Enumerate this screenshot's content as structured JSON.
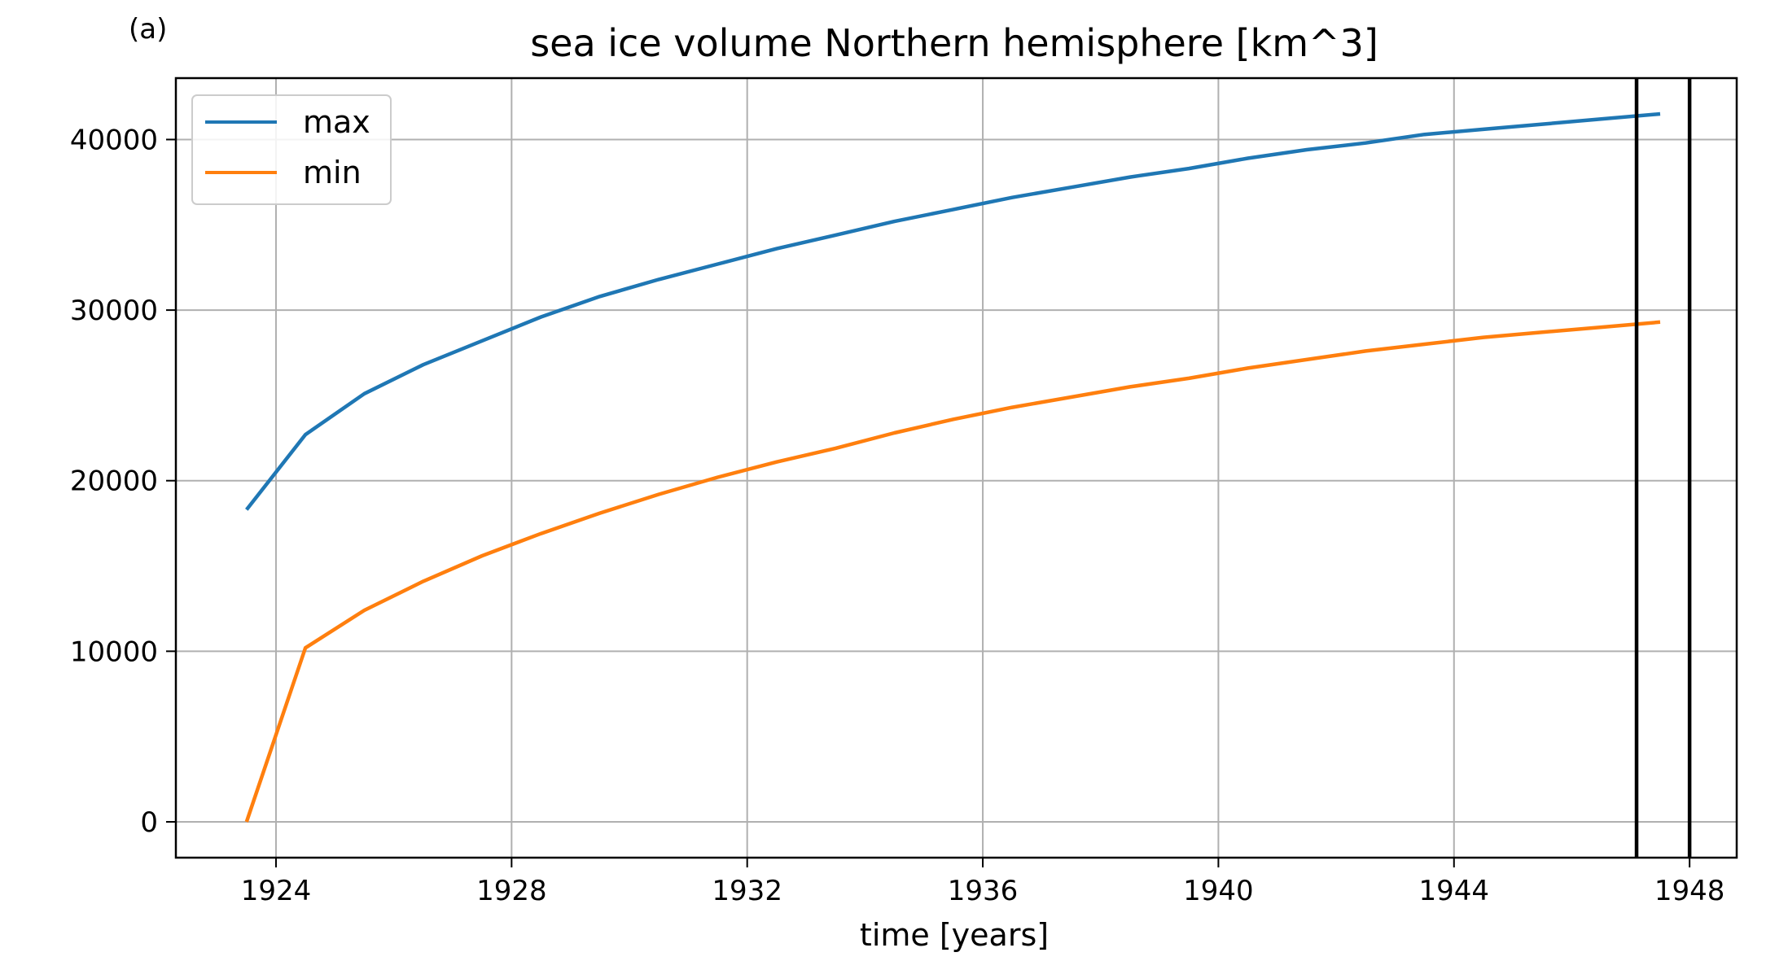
{
  "panel_label": "(a)",
  "chart_data": {
    "type": "line",
    "title": "sea ice volume Northern hemisphere [km^3]",
    "xlabel": "time [years]",
    "ylabel": "",
    "xlim": [
      1922.3,
      1948.8
    ],
    "ylim": [
      -2100,
      43600
    ],
    "xticks": [
      1924,
      1928,
      1932,
      1936,
      1940,
      1944,
      1948
    ],
    "yticks": [
      0,
      10000,
      20000,
      30000,
      40000
    ],
    "grid": true,
    "legend_position": "upper left",
    "vertical_lines": [
      1947.1,
      1948.0
    ],
    "series": [
      {
        "name": "max",
        "color": "#1f77b4",
        "x": [
          1923.5,
          1924.5,
          1925.5,
          1926.5,
          1927.5,
          1928.5,
          1929.5,
          1930.5,
          1931.5,
          1932.5,
          1933.5,
          1934.5,
          1935.5,
          1936.5,
          1937.5,
          1938.5,
          1939.5,
          1940.5,
          1941.5,
          1942.5,
          1943.5,
          1944.5,
          1945.5,
          1946.5,
          1947.5
        ],
        "y": [
          18300,
          22700,
          25100,
          26800,
          28200,
          29600,
          30800,
          31800,
          32700,
          33600,
          34400,
          35200,
          35900,
          36600,
          37200,
          37800,
          38300,
          38900,
          39400,
          39800,
          40300,
          40600,
          40900,
          41200,
          41500
        ]
      },
      {
        "name": "min",
        "color": "#ff7f0e",
        "x": [
          1923.5,
          1924.5,
          1925.5,
          1926.5,
          1927.5,
          1928.5,
          1929.5,
          1930.5,
          1931.5,
          1932.5,
          1933.5,
          1934.5,
          1935.5,
          1936.5,
          1937.5,
          1938.5,
          1939.5,
          1940.5,
          1941.5,
          1942.5,
          1943.5,
          1944.5,
          1945.5,
          1946.5,
          1947.5
        ],
        "y": [
          0,
          10200,
          12400,
          14100,
          15600,
          16900,
          18100,
          19200,
          20200,
          21100,
          21900,
          22800,
          23600,
          24300,
          24900,
          25500,
          26000,
          26600,
          27100,
          27600,
          28000,
          28400,
          28700,
          29000,
          29300
        ]
      }
    ]
  }
}
